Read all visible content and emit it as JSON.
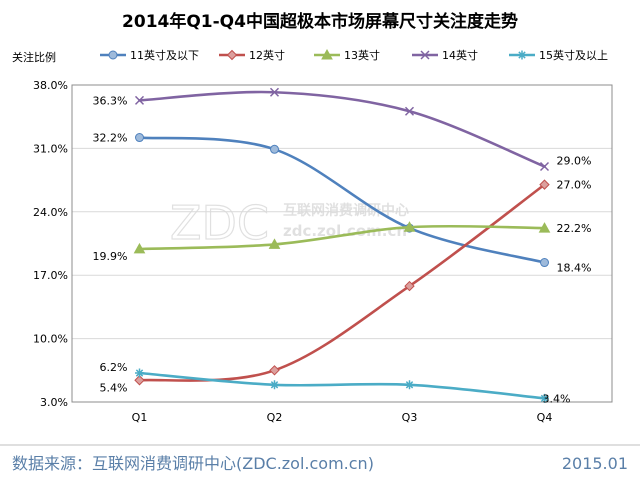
{
  "title": "2014年Q1-Q4中国超极本市场屏幕尺寸关注度走势",
  "footer": {
    "source": "数据来源：互联网消费调研中心(ZDC.zol.com.cn)",
    "date": "2015.01"
  },
  "watermark": {
    "logo": "ZDC",
    "line1": "互联网消费调研中心",
    "line2": "zdc.zol.com.cn"
  },
  "chart_data": {
    "type": "line",
    "title": "2014年Q1-Q4中国超极本市场屏幕尺寸关注度走势",
    "ylabel": "关注比例",
    "xlabel": "",
    "categories": [
      "Q1",
      "Q2",
      "Q3",
      "Q4"
    ],
    "ylim": [
      3.0,
      38.0
    ],
    "yticks": [
      "3.0%",
      "10.0%",
      "17.0%",
      "24.0%",
      "31.0%",
      "38.0%"
    ],
    "ytick_values": [
      3.0,
      10.0,
      17.0,
      24.0,
      31.0,
      38.0
    ],
    "grid": true,
    "legend": "top",
    "series": [
      {
        "name": "11英寸及以下",
        "color": "#4f81bd",
        "marker": "circle",
        "values": [
          32.2,
          30.9,
          22.2,
          18.4
        ],
        "labels": [
          "32.2%",
          "",
          "",
          "18.4%"
        ]
      },
      {
        "name": "12英寸",
        "color": "#c0504d",
        "marker": "diamond",
        "values": [
          5.4,
          6.5,
          15.8,
          27.0
        ],
        "labels": [
          "5.4%",
          "",
          "",
          "27.0%"
        ]
      },
      {
        "name": "13英寸",
        "color": "#9bbb59",
        "marker": "triangle",
        "values": [
          19.9,
          20.4,
          22.3,
          22.2
        ],
        "labels": [
          "19.9%",
          "",
          "",
          "22.2%"
        ]
      },
      {
        "name": "14英寸",
        "color": "#8064a2",
        "marker": "x",
        "values": [
          36.3,
          37.2,
          35.1,
          29.0
        ],
        "labels": [
          "36.3%",
          "",
          "",
          "29.0%"
        ]
      },
      {
        "name": "15英寸及以上",
        "color": "#4bacc6",
        "marker": "star",
        "values": [
          6.2,
          4.9,
          4.9,
          3.4
        ],
        "labels": [
          "6.2%",
          "",
          "",
          "3.4%"
        ]
      }
    ]
  }
}
